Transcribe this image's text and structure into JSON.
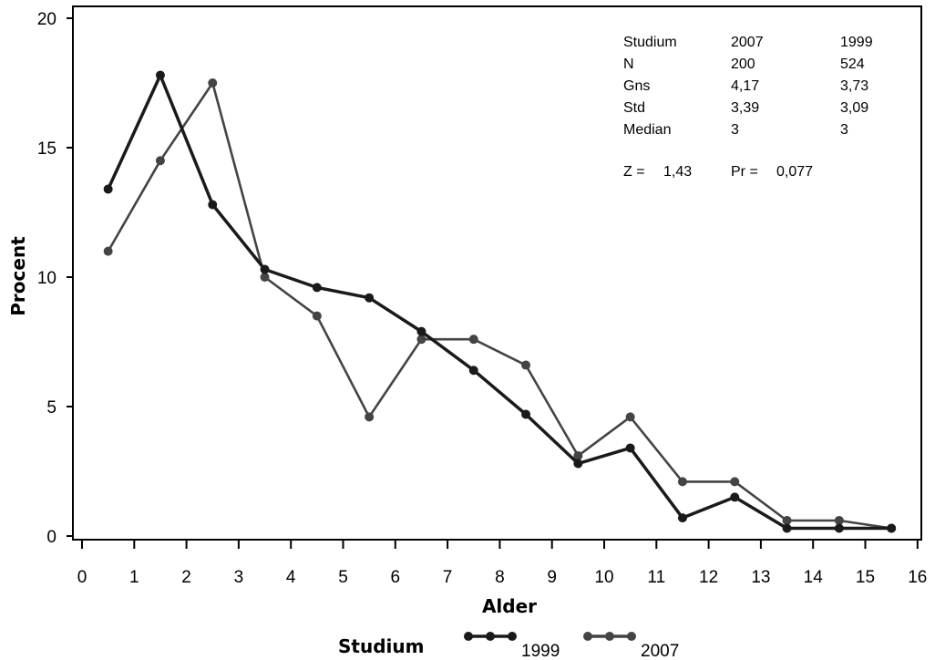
{
  "chart_data": {
    "type": "line",
    "xlabel": "Alder",
    "ylabel": "Procent",
    "xlim": [
      0,
      16
    ],
    "ylim": [
      0,
      20
    ],
    "xticks": [
      "0",
      "1",
      "2",
      "3",
      "4",
      "5",
      "6",
      "7",
      "8",
      "9",
      "10",
      "11",
      "12",
      "13",
      "14",
      "15",
      "16"
    ],
    "yticks": [
      "0",
      "5",
      "10",
      "15",
      "20"
    ],
    "grid": false,
    "legend_title": "Studium",
    "legend_position": "bottom",
    "series": [
      {
        "name": "1999",
        "color": "#1a1a1a",
        "x": [
          0.5,
          1.5,
          2.5,
          3.5,
          4.5,
          5.5,
          6.5,
          7.5,
          8.5,
          9.5,
          10.5,
          11.5,
          12.5,
          13.5,
          14.5,
          15.5
        ],
        "values": [
          13.4,
          17.8,
          12.8,
          10.3,
          9.6,
          9.2,
          7.9,
          6.4,
          4.7,
          2.8,
          3.4,
          0.7,
          1.5,
          0.3,
          0.3,
          0.3
        ]
      },
      {
        "name": "2007",
        "color": "#444444",
        "x": [
          0.5,
          1.5,
          2.5,
          3.5,
          4.5,
          5.5,
          6.5,
          7.5,
          8.5,
          9.5,
          10.5,
          11.5,
          12.5,
          13.5,
          14.5,
          15.5
        ],
        "values": [
          11.0,
          14.5,
          17.5,
          10.0,
          8.5,
          4.6,
          7.6,
          7.6,
          6.6,
          3.1,
          4.6,
          2.1,
          2.1,
          0.6,
          0.6,
          0.3
        ]
      }
    ],
    "stats_table": {
      "rows": [
        [
          "Studium",
          "2007",
          "1999"
        ],
        [
          "N",
          "200",
          "524"
        ],
        [
          "Gns",
          "4,17",
          "3,73"
        ],
        [
          "Std",
          "3,39",
          "3,09"
        ],
        [
          "Median",
          "3",
          "3"
        ]
      ],
      "test_line": [
        "Z =",
        "1,43",
        "Pr =",
        "0,077"
      ]
    }
  }
}
